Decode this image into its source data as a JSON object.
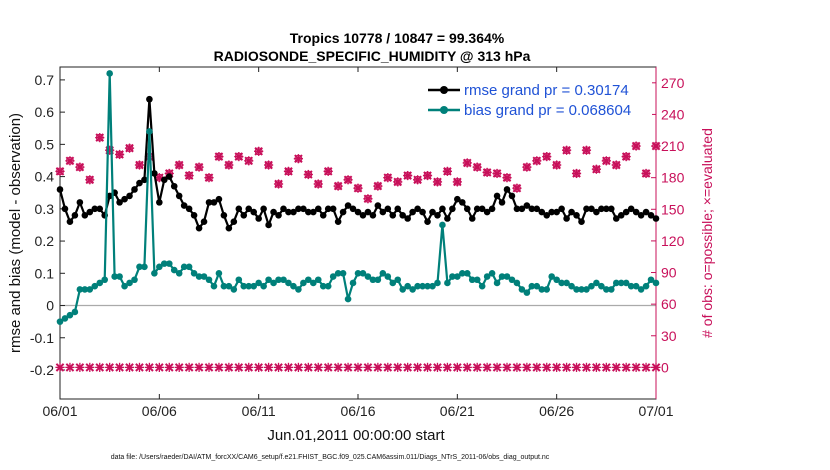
{
  "chart_data": {
    "type": "line",
    "title": "Tropics 10778 / 10847 = 99.364%",
    "subtitle": "RADIOSONDE_SPECIFIC_HUMIDITY @ 313 hPa",
    "xlabel": "Jun.01,2011 00:00:00 start",
    "ylabel": "rmse and bias (model - observation)",
    "ylabel_right": "# of obs: o=possible; ×=evaluated",
    "xlim": [
      0,
      30
    ],
    "ylim": [
      -0.29,
      0.74
    ],
    "ylim_right": [
      -30,
      285
    ],
    "x_tick_labels": [
      "06/01",
      "06/06",
      "06/11",
      "06/16",
      "06/21",
      "06/26",
      "07/01"
    ],
    "x_tick_values": [
      0,
      5,
      10,
      15,
      20,
      25,
      30
    ],
    "y_tick_labels": [
      "0.7",
      "0.6",
      "0.5",
      "0.4",
      "0.3",
      "0.2",
      "0.1",
      "0",
      "-0.1",
      "-0.2"
    ],
    "y_tick_values": [
      0.7,
      0.6,
      0.5,
      0.4,
      0.3,
      0.2,
      0.1,
      0,
      -0.1,
      -0.2
    ],
    "y_right_tick_labels": [
      "270",
      "240",
      "210",
      "180",
      "150",
      "120",
      "90",
      "60",
      "30",
      "0"
    ],
    "y_right_tick_values": [
      270,
      240,
      210,
      180,
      150,
      120,
      90,
      60,
      30,
      0
    ],
    "legend_position": "top-right",
    "footnote": "data file: /Users/raeder/DAI/ATM_forcXX/CAM6_setup/f.e21.FHIST_BGC.f09_025.CAM6assim.011/Diags_NTrS_2011-06/obs_diag_output.nc",
    "series": [
      {
        "name": "rmse grand pr = 0.30174",
        "color": "#000000",
        "x": [
          0,
          0.25,
          0.5,
          0.75,
          1,
          1.25,
          1.5,
          1.75,
          2,
          2.25,
          2.5,
          2.75,
          3,
          3.25,
          3.5,
          3.75,
          4,
          4.25,
          4.5,
          4.75,
          5,
          5.25,
          5.5,
          5.75,
          6,
          6.25,
          6.5,
          6.75,
          7,
          7.25,
          7.5,
          7.75,
          8,
          8.25,
          8.5,
          8.75,
          9,
          9.25,
          9.5,
          9.75,
          10,
          10.25,
          10.5,
          10.75,
          11,
          11.25,
          11.5,
          11.75,
          12,
          12.25,
          12.5,
          12.75,
          13,
          13.25,
          13.5,
          13.75,
          14,
          14.25,
          14.5,
          14.75,
          15,
          15.25,
          15.5,
          15.75,
          16,
          16.25,
          16.5,
          16.75,
          17,
          17.25,
          17.5,
          17.75,
          18,
          18.25,
          18.5,
          18.75,
          19,
          19.25,
          19.5,
          19.75,
          20,
          20.25,
          20.5,
          20.75,
          21,
          21.25,
          21.5,
          21.75,
          22,
          22.25,
          22.5,
          22.75,
          23,
          23.25,
          23.5,
          23.75,
          24,
          24.25,
          24.5,
          24.75,
          25,
          25.25,
          25.5,
          25.75,
          26,
          26.25,
          26.5,
          26.75,
          27,
          27.25,
          27.5,
          27.75,
          28,
          28.25,
          28.5,
          28.75,
          29,
          29.25,
          29.5,
          29.75,
          30
        ],
        "values": [
          0.36,
          0.3,
          0.26,
          0.28,
          0.32,
          0.28,
          0.29,
          0.3,
          0.3,
          0.28,
          0.34,
          0.35,
          0.32,
          0.33,
          0.34,
          0.36,
          0.38,
          0.39,
          0.64,
          0.41,
          0.32,
          0.39,
          0.4,
          0.37,
          0.34,
          0.31,
          0.3,
          0.28,
          0.24,
          0.26,
          0.32,
          0.32,
          0.33,
          0.28,
          0.24,
          0.26,
          0.3,
          0.28,
          0.3,
          0.29,
          0.27,
          0.3,
          0.25,
          0.29,
          0.28,
          0.3,
          0.29,
          0.29,
          0.3,
          0.3,
          0.29,
          0.29,
          0.3,
          0.28,
          0.3,
          0.3,
          0.26,
          0.29,
          0.31,
          0.3,
          0.29,
          0.28,
          0.29,
          0.28,
          0.31,
          0.29,
          0.3,
          0.28,
          0.3,
          0.28,
          0.27,
          0.29,
          0.3,
          0.29,
          0.26,
          0.29,
          0.28,
          0.3,
          0.27,
          0.3,
          0.33,
          0.32,
          0.3,
          0.27,
          0.3,
          0.3,
          0.29,
          0.3,
          0.34,
          0.32,
          0.36,
          0.34,
          0.3,
          0.3,
          0.31,
          0.3,
          0.3,
          0.29,
          0.28,
          0.29,
          0.29,
          0.3,
          0.27,
          0.29,
          0.28,
          0.26,
          0.3,
          0.3,
          0.29,
          0.3,
          0.3,
          0.3,
          0.27,
          0.28,
          0.29,
          0.3,
          0.29,
          0.28,
          0.29,
          0.28,
          0.27
        ]
      },
      {
        "name": "bias grand pr = 0.068604",
        "color": "#00807a",
        "x": [
          0,
          0.25,
          0.5,
          0.75,
          1,
          1.25,
          1.5,
          1.75,
          2,
          2.25,
          2.5,
          2.75,
          3,
          3.25,
          3.5,
          3.75,
          4,
          4.25,
          4.5,
          4.75,
          5,
          5.25,
          5.5,
          5.75,
          6,
          6.25,
          6.5,
          6.75,
          7,
          7.25,
          7.5,
          7.75,
          8,
          8.25,
          8.5,
          8.75,
          9,
          9.25,
          9.5,
          9.75,
          10,
          10.25,
          10.5,
          10.75,
          11,
          11.25,
          11.5,
          11.75,
          12,
          12.25,
          12.5,
          12.75,
          13,
          13.25,
          13.5,
          13.75,
          14,
          14.25,
          14.5,
          14.75,
          15,
          15.25,
          15.5,
          15.75,
          16,
          16.25,
          16.5,
          16.75,
          17,
          17.25,
          17.5,
          17.75,
          18,
          18.25,
          18.5,
          18.75,
          19,
          19.25,
          19.5,
          19.75,
          20,
          20.25,
          20.5,
          20.75,
          21,
          21.25,
          21.5,
          21.75,
          22,
          22.25,
          22.5,
          22.75,
          23,
          23.25,
          23.5,
          23.75,
          24,
          24.25,
          24.5,
          24.75,
          25,
          25.25,
          25.5,
          25.75,
          26,
          26.25,
          26.5,
          26.75,
          27,
          27.25,
          27.5,
          27.75,
          28,
          28.25,
          28.5,
          28.75,
          29,
          29.25,
          29.5,
          29.75,
          30
        ],
        "values": [
          -0.05,
          -0.04,
          -0.03,
          -0.02,
          0.05,
          0.05,
          0.05,
          0.06,
          0.07,
          0.08,
          0.72,
          0.09,
          0.09,
          0.06,
          0.07,
          0.08,
          0.12,
          0.12,
          0.54,
          0.1,
          0.12,
          0.13,
          0.13,
          0.11,
          0.1,
          0.12,
          0.12,
          0.1,
          0.09,
          0.09,
          0.08,
          0.06,
          0.1,
          0.06,
          0.06,
          0.05,
          0.08,
          0.06,
          0.06,
          0.06,
          0.07,
          0.06,
          0.08,
          0.07,
          0.08,
          0.08,
          0.07,
          0.06,
          0.05,
          0.07,
          0.08,
          0.07,
          0.08,
          0.06,
          0.06,
          0.09,
          0.1,
          0.1,
          0.02,
          0.07,
          0.1,
          0.1,
          0.09,
          0.08,
          0.08,
          0.1,
          0.09,
          0.07,
          0.08,
          0.05,
          0.06,
          0.05,
          0.06,
          0.06,
          0.06,
          0.06,
          0.07,
          0.25,
          0.07,
          0.09,
          0.09,
          0.1,
          0.1,
          0.08,
          0.08,
          0.06,
          0.09,
          0.1,
          0.07,
          0.09,
          0.09,
          0.08,
          0.07,
          0.05,
          0.04,
          0.06,
          0.06,
          0.05,
          0.05,
          0.09,
          0.08,
          0.07,
          0.07,
          0.06,
          0.05,
          0.05,
          0.05,
          0.06,
          0.07,
          0.06,
          0.05,
          0.05,
          0.07,
          0.07,
          0.07,
          0.06,
          0.06,
          0.05,
          0.06,
          0.08,
          0.07
        ]
      }
    ],
    "obs_possible": {
      "name": "# of obs possible",
      "marker": "o",
      "color": "#c8105a",
      "x_start": 0,
      "x_step": 0.5,
      "values_daily_00Z": [
        186,
        196,
        190,
        178,
        218,
        206,
        202,
        208,
        192,
        200,
        180,
        184,
        192,
        182,
        190,
        180,
        200,
        192,
        200,
        196,
        205,
        192,
        174,
        186,
        198,
        183,
        174,
        186,
        172,
        178,
        170,
        160,
        172,
        180,
        176,
        182,
        178,
        182,
        176,
        186,
        176,
        194,
        190,
        185,
        184,
        180,
        170,
        190,
        196,
        200,
        192,
        206,
        184,
        206,
        188,
        196,
        192,
        200,
        210,
        184,
        210
      ],
      "values_daily_12Z_zero": true
    },
    "obs_evaluated": {
      "name": "# of obs evaluated",
      "marker": "x",
      "color": "#c8105a",
      "values_12Z": 0
    }
  }
}
